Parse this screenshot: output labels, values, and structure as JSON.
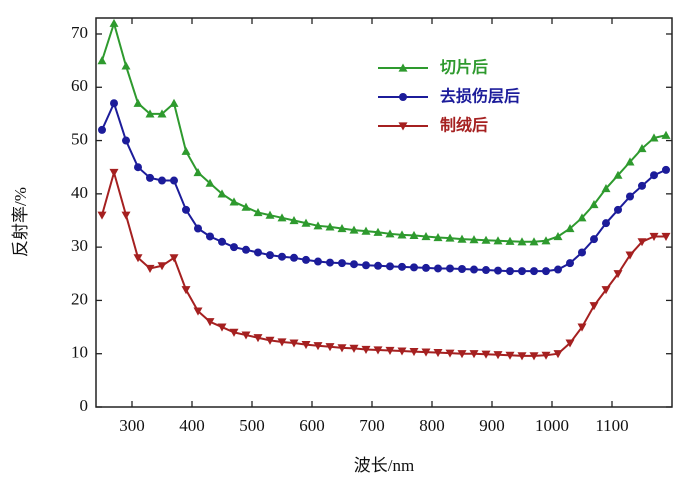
{
  "chart_data": {
    "type": "line",
    "xlabel": "波长/nm",
    "ylabel": "反射率/%",
    "xlim": [
      240,
      1200
    ],
    "ylim": [
      0,
      73
    ],
    "xticks": [
      300,
      400,
      500,
      600,
      700,
      800,
      900,
      1000,
      1100
    ],
    "yticks": [
      0,
      10,
      20,
      30,
      40,
      50,
      60,
      70
    ],
    "x": [
      250,
      270,
      290,
      310,
      330,
      350,
      370,
      390,
      410,
      430,
      450,
      470,
      490,
      510,
      530,
      550,
      570,
      590,
      610,
      630,
      650,
      670,
      690,
      710,
      730,
      750,
      770,
      790,
      810,
      830,
      850,
      870,
      890,
      910,
      930,
      950,
      970,
      990,
      1010,
      1030,
      1050,
      1070,
      1090,
      1110,
      1130,
      1150,
      1170,
      1190
    ],
    "series": [
      {
        "name": "切片后",
        "color": "#2e9a2e",
        "marker": "triangle-up",
        "values": [
          65,
          72,
          64,
          57,
          55,
          55,
          57,
          48,
          44,
          42,
          40,
          38.5,
          37.5,
          36.5,
          36,
          35.5,
          35,
          34.5,
          34,
          33.8,
          33.5,
          33.2,
          33,
          32.8,
          32.5,
          32.3,
          32.2,
          32,
          31.8,
          31.7,
          31.5,
          31.4,
          31.3,
          31.2,
          31.1,
          31,
          31,
          31.2,
          32,
          33.5,
          35.5,
          38,
          41,
          43.5,
          46,
          48.5,
          50.5,
          51
        ]
      },
      {
        "name": "去损伤层后",
        "color": "#1c1c9a",
        "marker": "circle",
        "values": [
          52,
          57,
          50,
          45,
          43,
          42.5,
          42.5,
          37,
          33.5,
          32,
          31,
          30,
          29.5,
          29,
          28.5,
          28.2,
          28,
          27.6,
          27.3,
          27.1,
          27,
          26.8,
          26.6,
          26.5,
          26.4,
          26.3,
          26.2,
          26.1,
          26,
          26,
          25.9,
          25.8,
          25.7,
          25.6,
          25.5,
          25.5,
          25.5,
          25.5,
          25.8,
          27,
          29,
          31.5,
          34.5,
          37,
          39.5,
          41.5,
          43.5,
          44.5
        ]
      },
      {
        "name": "制绒后",
        "color": "#a52020",
        "marker": "triangle-down",
        "values": [
          36,
          44,
          36,
          28,
          26,
          26.5,
          28,
          22,
          18,
          16,
          15,
          14,
          13.5,
          13,
          12.5,
          12.2,
          12,
          11.7,
          11.5,
          11.3,
          11.1,
          11,
          10.8,
          10.7,
          10.6,
          10.5,
          10.4,
          10.3,
          10.2,
          10.1,
          10,
          10,
          9.9,
          9.8,
          9.7,
          9.6,
          9.6,
          9.7,
          10,
          12,
          15,
          19,
          22,
          25,
          28.5,
          31,
          32,
          32
        ]
      }
    ]
  }
}
